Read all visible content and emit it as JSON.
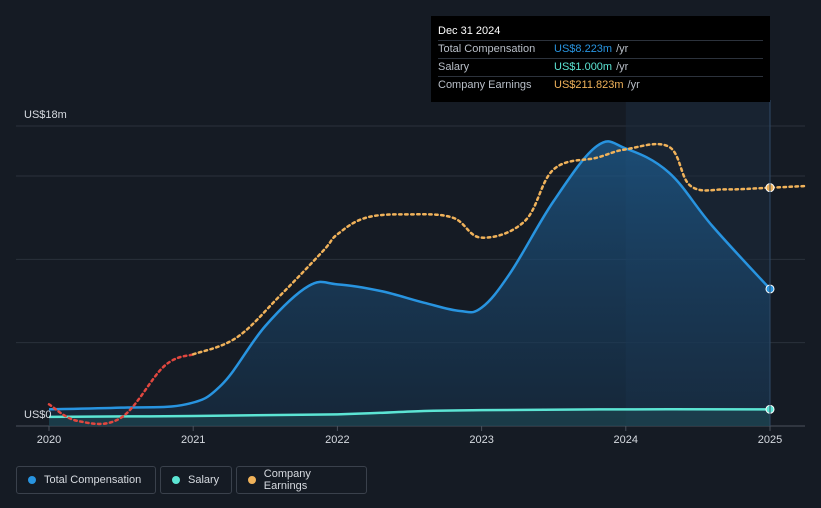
{
  "chart_data": {
    "type": "area",
    "y_axis_top_label": "US$18m",
    "y_axis_bottom_label": "US$0",
    "ylim": [
      0,
      18
    ],
    "xlim": [
      2020,
      2025.25
    ],
    "x_ticks": [
      "2020",
      "2021",
      "2022",
      "2023",
      "2024",
      "2025"
    ],
    "grid": true,
    "legend_placement": "bottom-left",
    "series": [
      {
        "name": "Total Compensation",
        "color": "#2894e0",
        "x": [
          2020.0,
          2020.5,
          2020.95,
          2021.2,
          2021.5,
          2021.8,
          2022.0,
          2022.3,
          2022.6,
          2022.85,
          2023.0,
          2023.2,
          2023.5,
          2023.8,
          2024.0,
          2024.3,
          2024.6,
          2025.0
        ],
        "values": [
          1.0,
          1.1,
          1.3,
          2.5,
          6.0,
          8.4,
          8.5,
          8.1,
          7.4,
          6.9,
          7.1,
          9.2,
          13.5,
          16.8,
          16.65,
          15.2,
          12.0,
          8.223
        ]
      },
      {
        "name": "Salary",
        "color": "#5ce5d4",
        "x": [
          2020.0,
          2021.0,
          2022.0,
          2022.6,
          2023.0,
          2024.0,
          2025.0
        ],
        "values": [
          0.55,
          0.6,
          0.7,
          0.9,
          0.95,
          1.0,
          1.0
        ]
      },
      {
        "name": "Company Earnings",
        "color": "#f0b25a",
        "scale_note": "drawn on secondary scale",
        "x": [
          2020.0,
          2020.2,
          2020.5,
          2020.8,
          2021.0,
          2021.3,
          2021.6,
          2021.9,
          2022.0,
          2022.2,
          2022.5,
          2022.8,
          2023.0,
          2023.3,
          2023.5,
          2023.8,
          2024.0,
          2024.3,
          2024.45,
          2024.7,
          2025.0,
          2025.25
        ],
        "values": [
          1.3,
          0.3,
          0.5,
          3.6,
          4.3,
          5.3,
          7.8,
          10.5,
          11.5,
          12.5,
          12.7,
          12.5,
          11.3,
          12.3,
          15.4,
          16.1,
          16.6,
          16.75,
          14.4,
          14.2,
          14.3,
          14.4
        ],
        "negative_color": "#e0473f",
        "negative_until_x": 2021.0
      }
    ],
    "highlight": {
      "from": 2024.0,
      "to": 2025.0
    },
    "endpoint_x": 2025.0
  },
  "tooltip": {
    "date": "Dec 31 2024",
    "rows": [
      {
        "label": "Total Compensation",
        "value": "US$8.223m",
        "unit": "/yr",
        "color": "#2894e0"
      },
      {
        "label": "Salary",
        "value": "US$1.000m",
        "unit": "/yr",
        "color": "#5ce5d4"
      },
      {
        "label": "Company Earnings",
        "value": "US$211.823m",
        "unit": "/yr",
        "color": "#f0b25a"
      }
    ]
  },
  "legend": {
    "items": [
      {
        "label": "Total Compensation",
        "color": "#2894e0"
      },
      {
        "label": "Salary",
        "color": "#5ce5d4"
      },
      {
        "label": "Company Earnings",
        "color": "#f0b25a"
      }
    ]
  }
}
